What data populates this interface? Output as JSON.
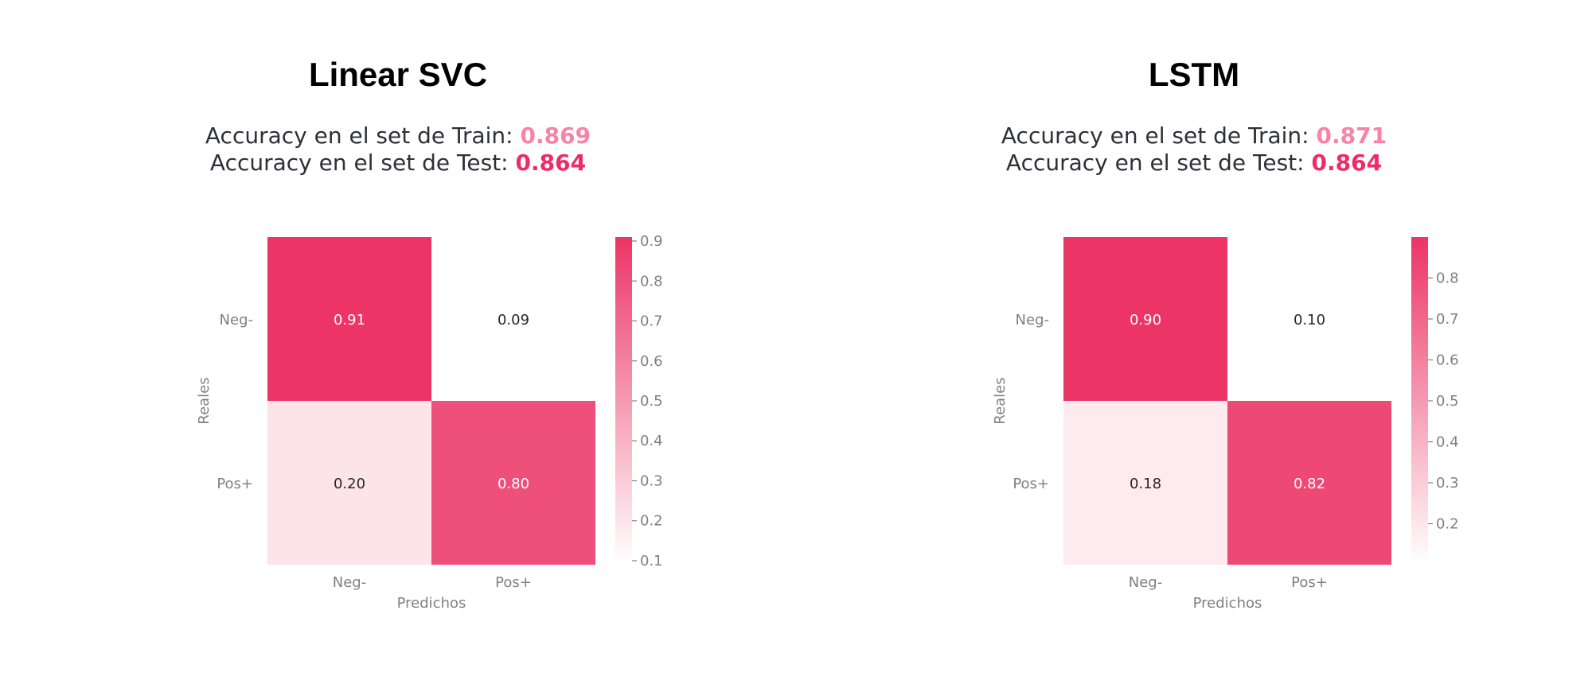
{
  "colors": {
    "accent_train": "#f783a8",
    "accent_test": "#ee2b67",
    "cmap_high": "#ec3466",
    "cmap_low": "#ffffff",
    "tick_text": "#808080",
    "title": "#000000",
    "subtitle": "#2f2f3a"
  },
  "chart_data": [
    {
      "type": "heatmap",
      "title": "Linear SVC",
      "accuracy": {
        "train_label": "Accuracy en el set de Train:",
        "train_value": "0.869",
        "test_label": "Accuracy en el set de Test:",
        "test_value": "0.864"
      },
      "xlabel": "Predichos",
      "ylabel": "Reales",
      "x_categories": [
        "Neg-",
        "Pos+"
      ],
      "y_categories": [
        "Neg-",
        "Pos+"
      ],
      "values": [
        [
          0.91,
          0.09
        ],
        [
          0.2,
          0.8
        ]
      ],
      "cell_labels": [
        [
          "0.91",
          "0.09"
        ],
        [
          "0.20",
          "0.80"
        ]
      ],
      "colorbar": {
        "vmin": 0.09,
        "vmax": 0.91,
        "ticks": [
          0.1,
          0.2,
          0.3,
          0.4,
          0.5,
          0.6,
          0.7,
          0.8,
          0.9
        ],
        "tick_labels": [
          "0.1",
          "0.2",
          "0.3",
          "0.4",
          "0.5",
          "0.6",
          "0.7",
          "0.8",
          "0.9"
        ]
      }
    },
    {
      "type": "heatmap",
      "title": "LSTM",
      "accuracy": {
        "train_label": "Accuracy en el set de Train:",
        "train_value": "0.871",
        "test_label": "Accuracy en el set de Test:",
        "test_value": "0.864"
      },
      "xlabel": "Predichos",
      "ylabel": "Reales",
      "x_categories": [
        "Neg-",
        "Pos+"
      ],
      "y_categories": [
        "Neg-",
        "Pos+"
      ],
      "values": [
        [
          0.9,
          0.1
        ],
        [
          0.18,
          0.82
        ]
      ],
      "cell_labels": [
        [
          "0.90",
          "0.10"
        ],
        [
          "0.18",
          "0.82"
        ]
      ],
      "colorbar": {
        "vmin": 0.1,
        "vmax": 0.9,
        "ticks": [
          0.2,
          0.3,
          0.4,
          0.5,
          0.6,
          0.7,
          0.8
        ],
        "tick_labels": [
          "0.2",
          "0.3",
          "0.4",
          "0.5",
          "0.6",
          "0.7",
          "0.8"
        ]
      }
    }
  ]
}
